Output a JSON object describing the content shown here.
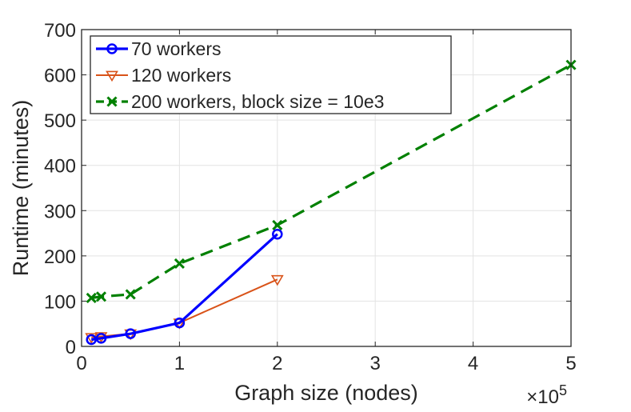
{
  "chart_data": {
    "type": "line",
    "title": "",
    "xlabel": "Graph size (nodes)",
    "ylabel": "Runtime (minutes)",
    "x_multiplier_label": "×10",
    "x_multiplier_exponent": "5",
    "xlim": [
      0,
      5
    ],
    "ylim": [
      0,
      700
    ],
    "x_ticks": [
      0,
      1,
      2,
      3,
      4,
      5
    ],
    "x_tick_labels": [
      "0",
      "1",
      "2",
      "3",
      "4",
      "5"
    ],
    "y_ticks": [
      0,
      100,
      200,
      300,
      400,
      500,
      600,
      700
    ],
    "y_tick_labels": [
      "0",
      "100",
      "200",
      "300",
      "400",
      "500",
      "600",
      "700"
    ],
    "grid": true,
    "legend_position": "top-left",
    "series": [
      {
        "name": "70 workers",
        "color": "#0000ff",
        "marker": "circle",
        "line_style": "solid",
        "x": [
          0.1,
          0.2,
          0.5,
          1,
          2
        ],
        "y": [
          15,
          18,
          28,
          52,
          248
        ]
      },
      {
        "name": "120 workers",
        "color": "#d95319",
        "marker": "triangle-down",
        "line_style": "solid",
        "x": [
          0.1,
          0.2,
          0.5,
          1,
          2
        ],
        "y": [
          20,
          22,
          28,
          52,
          148
        ]
      },
      {
        "name": "200 workers, block size = 10e3",
        "color": "#008000",
        "marker": "x",
        "line_style": "dashed",
        "x": [
          0.1,
          0.2,
          0.5,
          1,
          2,
          5
        ],
        "y": [
          107,
          110,
          115,
          183,
          268,
          622
        ]
      }
    ]
  }
}
